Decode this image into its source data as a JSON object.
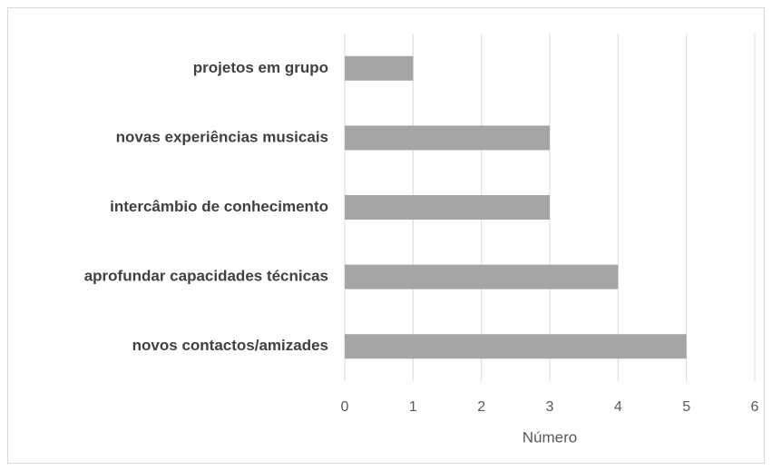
{
  "chart_data": {
    "type": "bar",
    "orientation": "horizontal",
    "categories": [
      "projetos em grupo",
      "novas experiências musicais",
      "intercâmbio de conhecimento",
      "aprofundar capacidades técnicas",
      "novos contactos/amizades"
    ],
    "values": [
      1,
      3,
      3,
      4,
      5
    ],
    "color": "#a5a5a5",
    "xlabel": "Número",
    "xlim": [
      0,
      6
    ],
    "xticks": [
      0,
      1,
      2,
      3,
      4,
      5,
      6
    ],
    "grid": true
  }
}
